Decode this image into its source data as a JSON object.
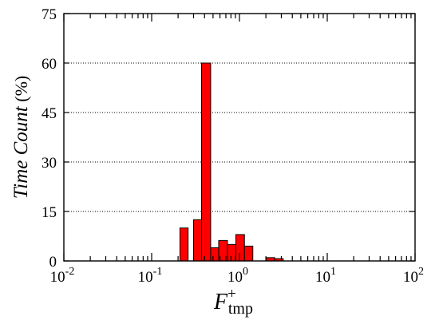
{
  "chart_data": {
    "type": "bar",
    "title": "",
    "xlabel": {
      "main": "F",
      "sup": "+",
      "sub": "tmp"
    },
    "ylabel": {
      "italic": "Time Count",
      "unit": " (%)"
    },
    "x_scale": "log",
    "xlim": [
      0.01,
      100
    ],
    "ylim": [
      0,
      75
    ],
    "y_ticks": [
      0,
      15,
      30,
      45,
      60,
      75
    ],
    "y_tick_labels": [
      "0",
      "15",
      "30",
      "45",
      "60",
      "75"
    ],
    "x_ticks": [
      0.01,
      0.1,
      1,
      10,
      100
    ],
    "x_tick_labels": [
      {
        "base": "10",
        "exp": "-2"
      },
      {
        "base": "10",
        "exp": "-1"
      },
      {
        "base": "10",
        "exp": "0"
      },
      {
        "base": "10",
        "exp": "1"
      },
      {
        "base": "10",
        "exp": "2"
      }
    ],
    "grid": "horizontal-dotted",
    "bar_color": "#ff0000",
    "bars": [
      {
        "x0": 0.21,
        "x1": 0.26,
        "value": 10
      },
      {
        "x0": 0.3,
        "x1": 0.37,
        "value": 12.5
      },
      {
        "x0": 0.37,
        "x1": 0.47,
        "value": 60
      },
      {
        "x0": 0.47,
        "x1": 0.58,
        "value": 4
      },
      {
        "x0": 0.58,
        "x1": 0.73,
        "value": 6.2
      },
      {
        "x0": 0.73,
        "x1": 0.91,
        "value": 5
      },
      {
        "x0": 0.91,
        "x1": 1.14,
        "value": 8
      },
      {
        "x0": 1.14,
        "x1": 1.42,
        "value": 4.5
      },
      {
        "x0": 2.02,
        "x1": 2.52,
        "value": 1
      },
      {
        "x0": 2.52,
        "x1": 3.15,
        "value": 0.7
      }
    ]
  }
}
